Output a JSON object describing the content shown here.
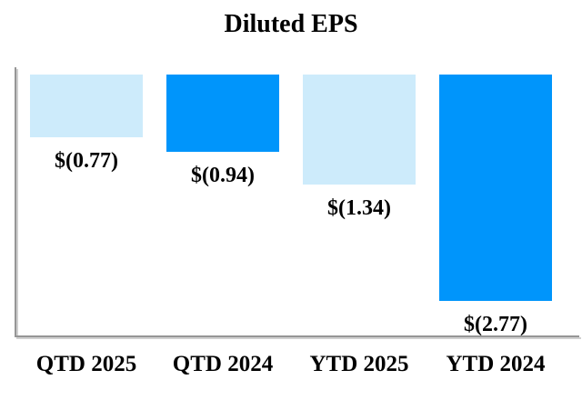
{
  "chart_data": {
    "type": "bar",
    "title": "Diluted EPS",
    "categories": [
      "QTD 2025",
      "QTD 2024",
      "YTD 2025",
      "YTD 2024"
    ],
    "values": [
      -0.77,
      -0.94,
      -1.34,
      -2.77
    ],
    "value_labels": [
      "$(0.77)",
      "$(0.94)",
      "$(1.34)",
      "$(2.77)"
    ],
    "bar_colors": [
      "#CDEBFB",
      "#0095FB",
      "#CDEBFB",
      "#0095FB"
    ],
    "xlabel": "",
    "ylabel": "",
    "ylim": [
      -3.2,
      0
    ],
    "baseline": "top",
    "grid": false,
    "legend": false,
    "axis_color": "#969696",
    "label_color": "#000000"
  }
}
